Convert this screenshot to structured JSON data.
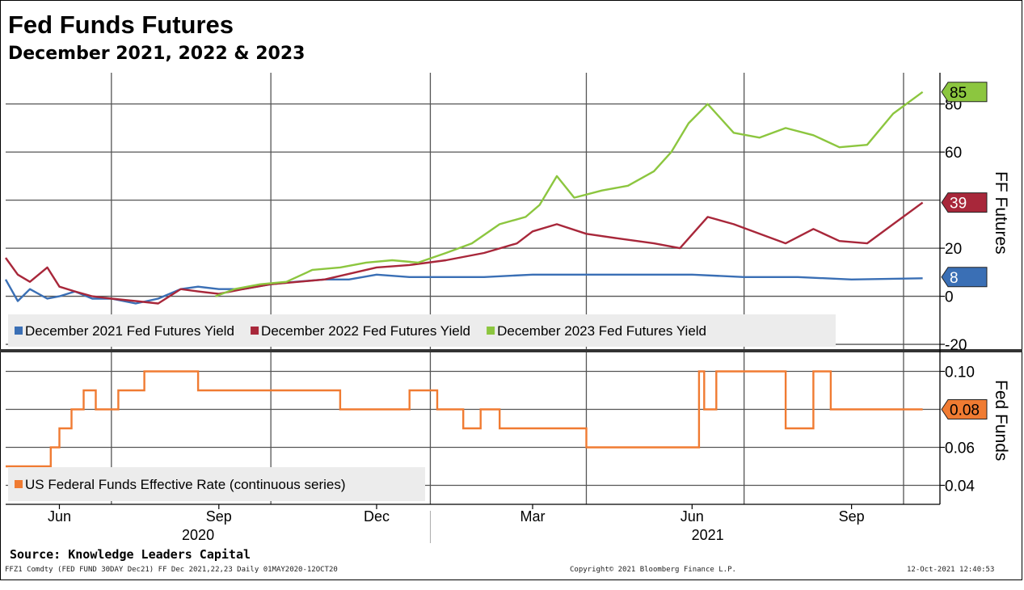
{
  "header": {
    "title": "Fed Funds Futures",
    "subtitle": "December 2021, 2022 & 2023"
  },
  "footer": {
    "source": "Source: Knowledge Leaders Capital",
    "left_note": "FFZ1 Comdty (FED FUND 30DAY   Dec21) FF Dec 2021,22,23  Daily 01MAY2020-12OCT20",
    "center_note": "Copyright© 2021 Bloomberg Finance L.P.",
    "right_note": "12-Oct-2021 12:40:53"
  },
  "colors": {
    "dec2021": "#3a6fb5",
    "dec2022": "#a8273a",
    "dec2023": "#8cc63f",
    "effr": "#f07b32",
    "grid": "#555555",
    "legend_bg": "#ececec"
  },
  "chart_data": [
    {
      "type": "line",
      "panel": "top",
      "ylabel": "FF Futures",
      "ylim": [
        -22,
        93
      ],
      "yticks": [
        -20,
        0,
        20,
        60,
        80
      ],
      "x_month_ticks": [
        "Jun",
        "Sep",
        "Dec",
        "Mar",
        "Jun",
        "Sep"
      ],
      "x_year_labels": [
        "2020",
        "2021"
      ],
      "last_value_labels": [
        "85",
        "39",
        "8"
      ],
      "series": [
        {
          "name": "December 2021 Fed Futures Yield",
          "color_key": "dec2021",
          "x": [
            "2020-05-01",
            "2020-05-08",
            "2020-05-15",
            "2020-05-25",
            "2020-06-01",
            "2020-06-10",
            "2020-06-20",
            "2020-07-01",
            "2020-07-15",
            "2020-07-28",
            "2020-08-10",
            "2020-08-20",
            "2020-09-01",
            "2020-09-15",
            "2020-10-01",
            "2020-10-15",
            "2020-11-01",
            "2020-11-15",
            "2020-12-01",
            "2020-12-20",
            "2021-01-10",
            "2021-02-01",
            "2021-03-01",
            "2021-04-01",
            "2021-05-01",
            "2021-06-01",
            "2021-07-01",
            "2021-08-01",
            "2021-09-01",
            "2021-10-12"
          ],
          "values": [
            7,
            -2,
            3,
            -1,
            0,
            2,
            -1,
            -1,
            -3,
            -1,
            3,
            4,
            3,
            3,
            5,
            6,
            7,
            7,
            9,
            8,
            8,
            8,
            9,
            9,
            9,
            9,
            8,
            8,
            7,
            7.5
          ]
        },
        {
          "name": "December 2022 Fed Futures Yield",
          "color_key": "dec2022",
          "x": [
            "2020-05-01",
            "2020-05-08",
            "2020-05-15",
            "2020-05-25",
            "2020-06-01",
            "2020-06-10",
            "2020-06-20",
            "2020-07-01",
            "2020-07-15",
            "2020-07-28",
            "2020-08-10",
            "2020-08-20",
            "2020-09-01",
            "2020-09-15",
            "2020-10-01",
            "2020-11-01",
            "2020-12-01",
            "2020-12-20",
            "2021-01-10",
            "2021-02-01",
            "2021-02-20",
            "2021-03-01",
            "2021-03-15",
            "2021-04-01",
            "2021-04-20",
            "2021-05-10",
            "2021-05-25",
            "2021-06-10",
            "2021-06-25",
            "2021-07-10",
            "2021-07-25",
            "2021-08-10",
            "2021-08-25",
            "2021-09-10",
            "2021-09-25",
            "2021-10-12"
          ],
          "values": [
            16,
            9,
            6,
            12,
            4,
            2,
            0,
            -1,
            -2,
            -3,
            3,
            2,
            1,
            3,
            5,
            7,
            12,
            13,
            15,
            18,
            22,
            27,
            30,
            26,
            24,
            22,
            20,
            33,
            30,
            26,
            22,
            28,
            23,
            22,
            30,
            39
          ]
        },
        {
          "name": "December 2023 Fed Futures Yield",
          "color_key": "dec2023",
          "x": [
            "2020-08-30",
            "2020-09-10",
            "2020-09-25",
            "2020-10-10",
            "2020-10-25",
            "2020-11-10",
            "2020-11-25",
            "2020-12-10",
            "2020-12-25",
            "2021-01-10",
            "2021-01-25",
            "2021-02-10",
            "2021-02-25",
            "2021-03-05",
            "2021-03-15",
            "2021-03-25",
            "2021-04-10",
            "2021-04-25",
            "2021-05-10",
            "2021-05-20",
            "2021-05-30",
            "2021-06-10",
            "2021-06-25",
            "2021-07-10",
            "2021-07-25",
            "2021-08-10",
            "2021-08-25",
            "2021-09-10",
            "2021-09-25",
            "2021-10-12"
          ],
          "values": [
            0,
            3,
            5,
            6,
            11,
            12,
            14,
            15,
            14,
            18,
            22,
            30,
            33,
            38,
            50,
            41,
            44,
            46,
            52,
            60,
            72,
            80,
            68,
            66,
            70,
            67,
            62,
            63,
            76,
            85
          ]
        }
      ]
    },
    {
      "type": "line",
      "panel": "bottom",
      "ylabel": "Fed Funds",
      "ylim": [
        0.03,
        0.11
      ],
      "yticks": [
        "0.10",
        "0.06",
        "0.04"
      ],
      "last_value_labels": [
        "0.08"
      ],
      "series": [
        {
          "name": "US Federal Funds Effective Rate (continuous series)",
          "color_key": "effr",
          "x": [
            "2020-05-01",
            "2020-05-26",
            "2020-05-27",
            "2020-06-01",
            "2020-06-08",
            "2020-06-15",
            "2020-06-22",
            "2020-07-05",
            "2020-07-20",
            "2020-07-30",
            "2020-08-10",
            "2020-08-20",
            "2020-08-25",
            "2020-09-01",
            "2020-11-03",
            "2020-11-10",
            "2020-12-20",
            "2021-01-05",
            "2021-01-20",
            "2021-01-30",
            "2021-02-10",
            "2021-03-10",
            "2021-04-01",
            "2021-04-20",
            "2021-05-20",
            "2021-06-05",
            "2021-06-08",
            "2021-06-15",
            "2021-07-20",
            "2021-07-25",
            "2021-08-10",
            "2021-08-20",
            "2021-08-25",
            "2021-09-25",
            "2021-10-12"
          ],
          "values": [
            0.05,
            0.05,
            0.06,
            0.07,
            0.08,
            0.09,
            0.08,
            0.09,
            0.1,
            0.1,
            0.1,
            0.09,
            0.09,
            0.09,
            0.09,
            0.08,
            0.09,
            0.08,
            0.07,
            0.08,
            0.07,
            0.07,
            0.06,
            0.06,
            0.06,
            0.1,
            0.08,
            0.1,
            0.1,
            0.07,
            0.1,
            0.08,
            0.08,
            0.08,
            0.08
          ]
        }
      ]
    }
  ]
}
